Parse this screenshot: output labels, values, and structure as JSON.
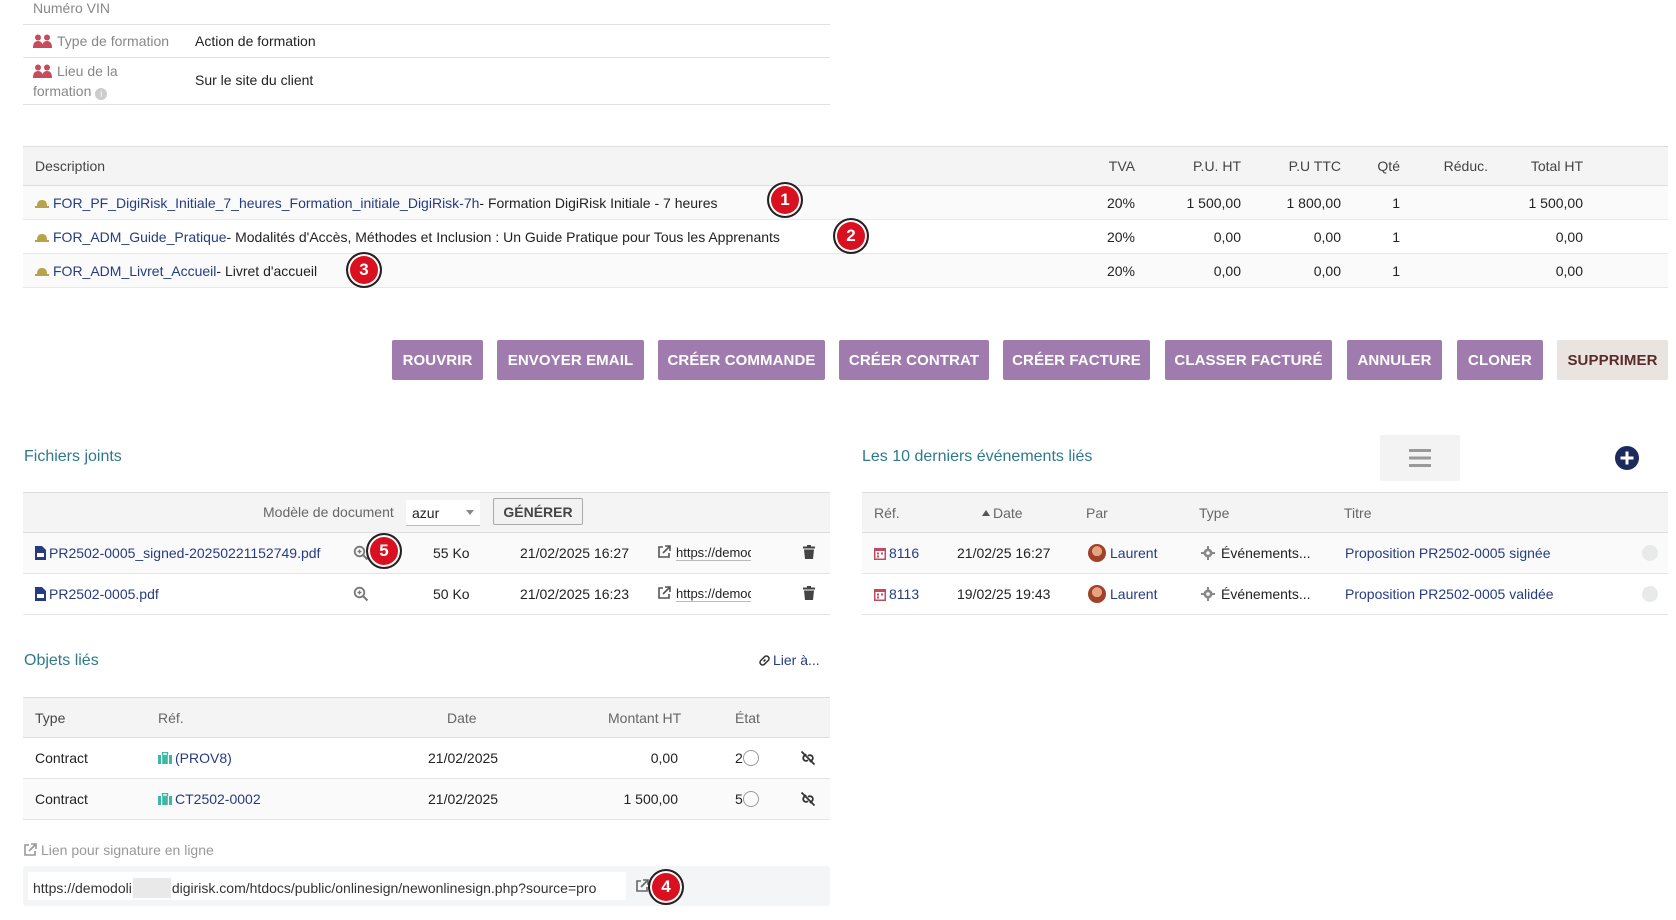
{
  "info": {
    "vin_label": "Numéro VIN",
    "type_label": "Type de formation",
    "type_value": "Action de formation",
    "lieu_label_1": "Lieu de la",
    "lieu_label_2": "formation",
    "lieu_value": "Sur le site du client"
  },
  "lines": {
    "headers": {
      "description": "Description",
      "tva": "TVA",
      "pu_ht": "P.U. HT",
      "pu_ttc": "P.U TTC",
      "qty": "Qté",
      "reduc": "Réduc.",
      "total_ht": "Total HT"
    },
    "rows": [
      {
        "ref": "FOR_PF_DigiRisk_Initiale_7_heures_Formation_initiale_DigiRisk-7h",
        "desc": " - Formation DigiRisk Initiale - 7 heures",
        "tva": "20%",
        "pu_ht": "1 500,00",
        "pu_ttc": "1 800,00",
        "qty": "1",
        "total_ht": "1 500,00",
        "badge": "1"
      },
      {
        "ref": "FOR_ADM_Guide_Pratique",
        "desc": " - Modalités d'Accès, Méthodes et Inclusion : Un Guide Pratique pour Tous les Apprenants",
        "tva": "20%",
        "pu_ht": "0,00",
        "pu_ttc": "0,00",
        "qty": "1",
        "total_ht": "0,00",
        "badge": "2"
      },
      {
        "ref": "FOR_ADM_Livret_Accueil",
        "desc": " - Livret d'accueil",
        "tva": "20%",
        "pu_ht": "0,00",
        "pu_ttc": "0,00",
        "qty": "1",
        "total_ht": "0,00",
        "badge": "3"
      }
    ]
  },
  "actions": {
    "rouvrir": "ROUVRIR",
    "envoyer_email": "ENVOYER EMAIL",
    "creer_commande": "CRÉER COMMANDE",
    "creer_contrat": "CRÉER CONTRAT",
    "creer_facture": "CRÉER FACTURE",
    "classer_facture": "CLASSER FACTURÉ",
    "annuler": "ANNULER",
    "cloner": "CLONER",
    "supprimer": "SUPPRIMER"
  },
  "files": {
    "title": "Fichiers joints",
    "model_label": "Modèle de document",
    "model_value": "azur",
    "generate": "GÉNÉRER",
    "rows": [
      {
        "name": "PR2502-0005_signed-20250221152749.pdf",
        "size": "55 Ko",
        "date": "21/02/2025 16:27",
        "link": "https://demod",
        "badge": "5"
      },
      {
        "name": "PR2502-0005.pdf",
        "size": "50 Ko",
        "date": "21/02/2025 16:23",
        "link": "https://demod"
      }
    ]
  },
  "events": {
    "title": "Les 10 derniers événements liés",
    "headers": {
      "ref": "Réf.",
      "date": "Date",
      "par": "Par",
      "type": "Type",
      "titre": "Titre"
    },
    "rows": [
      {
        "ref": "8116",
        "date": "21/02/25 16:27",
        "par": "Laurent",
        "type": "Événements...",
        "titre": "Proposition PR2502-0005 signée"
      },
      {
        "ref": "8113",
        "date": "19/02/25 19:43",
        "par": "Laurent",
        "type": "Événements...",
        "titre": "Proposition PR2502-0005 validée"
      }
    ]
  },
  "linked": {
    "title": "Objets liés",
    "link_label": "Lier à...",
    "headers": {
      "type": "Type",
      "ref": "Réf.",
      "date": "Date",
      "montant": "Montant HT",
      "etat": "État"
    },
    "rows": [
      {
        "type": "Contract",
        "ref": "(PROV8)",
        "date": "21/02/2025",
        "montant": "0,00",
        "etat": "2"
      },
      {
        "type": "Contract",
        "ref": "CT2502-0002",
        "date": "21/02/2025",
        "montant": "1 500,00",
        "etat": "5"
      }
    ]
  },
  "signature": {
    "label": "Lien pour signature en ligne",
    "url_part1": "https://demodoli",
    "url_part2": "digirisk.com/htdocs/public/onlinesign/newonlinesign.php?source=pro",
    "badge": "4"
  }
}
